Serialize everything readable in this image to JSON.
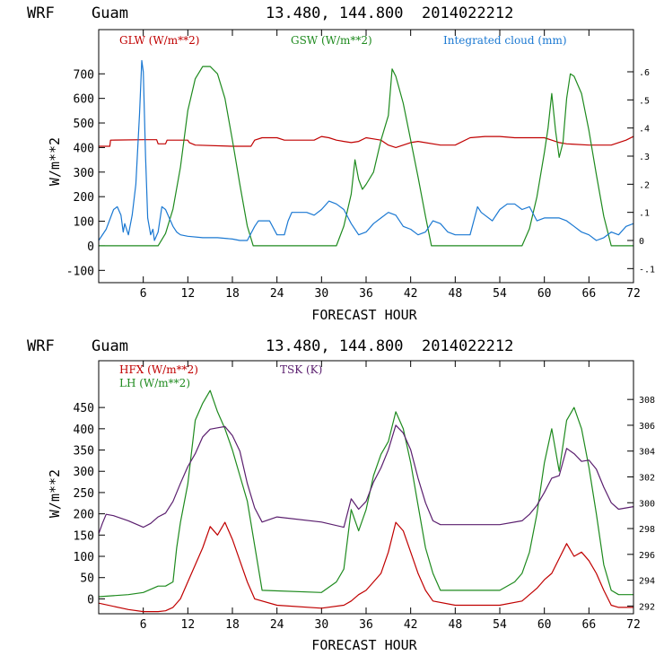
{
  "chart_data": [
    {
      "type": "line",
      "header": {
        "model": "WRF",
        "site": "Guam",
        "coords": "13.480, 144.800",
        "run": "2014022212"
      },
      "xlabel": "FORECAST HOUR",
      "ylabel": "W/m**2",
      "xlim": [
        0,
        72
      ],
      "ylim": [
        -150,
        880
      ],
      "xticks": [
        6,
        12,
        18,
        24,
        30,
        36,
        42,
        48,
        54,
        60,
        66,
        72
      ],
      "yticks": [
        -100,
        0,
        100,
        200,
        300,
        400,
        500,
        600,
        700
      ],
      "right_axis": {
        "ylim": [
          -0.15,
          0.75
        ],
        "ticks": [
          -0.1,
          0,
          0.1,
          0.2,
          0.3,
          0.4,
          0.5,
          0.6
        ],
        "tick_labels": [
          "-.1",
          "0",
          ".1",
          ".2",
          ".3",
          ".4",
          ".5",
          ".6"
        ]
      },
      "series": [
        {
          "name": "GLW (W/m**2)",
          "color": "#c00000",
          "axis": "left",
          "x": [
            0,
            1.5,
            1.6,
            6,
            7.8,
            8,
            9,
            9.2,
            12,
            12.2,
            13,
            18,
            20.5,
            21,
            22,
            24,
            25,
            29,
            30,
            31,
            32,
            33,
            34,
            35,
            36,
            37,
            38,
            39,
            40,
            41,
            42,
            43,
            46,
            48,
            50,
            52,
            54,
            56,
            58,
            60,
            61,
            62,
            63,
            66,
            69,
            71,
            72
          ],
          "values": [
            405,
            405,
            430,
            432,
            432,
            415,
            415,
            430,
            430,
            420,
            410,
            405,
            405,
            430,
            440,
            440,
            430,
            430,
            445,
            440,
            430,
            425,
            420,
            425,
            440,
            435,
            430,
            410,
            400,
            410,
            420,
            425,
            410,
            410,
            440,
            445,
            445,
            440,
            440,
            440,
            430,
            420,
            415,
            410,
            410,
            430,
            445
          ]
        },
        {
          "name": "GSW (W/m**2)",
          "color": "#1e8a1e",
          "axis": "left",
          "x": [
            0,
            8,
            9,
            10,
            11,
            12,
            13,
            14,
            15,
            16,
            17,
            18,
            19,
            20,
            20.8,
            21,
            32,
            33,
            34,
            34.5,
            35,
            35.5,
            36,
            37,
            38,
            39,
            39.5,
            40,
            41,
            42,
            43,
            44,
            44.8,
            45,
            57,
            58,
            59,
            60,
            60.5,
            61,
            61.5,
            62,
            62.5,
            63,
            63.5,
            64,
            65,
            66,
            67,
            68,
            69,
            72
          ],
          "values": [
            0,
            0,
            50,
            150,
            320,
            550,
            680,
            730,
            730,
            700,
            600,
            430,
            250,
            80,
            0,
            0,
            0,
            80,
            210,
            350,
            270,
            230,
            250,
            300,
            430,
            530,
            720,
            690,
            580,
            430,
            280,
            120,
            0,
            0,
            0,
            70,
            200,
            380,
            480,
            620,
            470,
            360,
            420,
            600,
            700,
            690,
            620,
            470,
            290,
            120,
            0,
            0
          ]
        },
        {
          "name": "Integrated cloud (mm)",
          "color": "#1a78d2",
          "axis": "right",
          "x": [
            0,
            1,
            2,
            2.5,
            3,
            3.3,
            3.5,
            4,
            4.5,
            5,
            5.5,
            5.8,
            6,
            6.3,
            6.6,
            7,
            7.3,
            7.5,
            8,
            8.5,
            9,
            9.5,
            10,
            10.5,
            11,
            12,
            14,
            16,
            18,
            19,
            20,
            21,
            21.5,
            22,
            23,
            24,
            25,
            25.5,
            26,
            27,
            28,
            29,
            30,
            31,
            32,
            33,
            34,
            35,
            36,
            37,
            38,
            39,
            40,
            41,
            42,
            43,
            44,
            45,
            46,
            47,
            48,
            49,
            50,
            51,
            51.5,
            52,
            53,
            54,
            55,
            56,
            57,
            58,
            59,
            60,
            61,
            62,
            63,
            64,
            65,
            66,
            67,
            68,
            69,
            70,
            71,
            72
          ],
          "values": [
            0,
            0.04,
            0.11,
            0.12,
            0.09,
            0.03,
            0.06,
            0.02,
            0.09,
            0.2,
            0.45,
            0.64,
            0.6,
            0.3,
            0.08,
            0.02,
            0.04,
            0.0,
            0.03,
            0.12,
            0.11,
            0.08,
            0.05,
            0.03,
            0.02,
            0.015,
            0.01,
            0.01,
            0.005,
            0.0,
            0.0,
            0.05,
            0.07,
            0.07,
            0.07,
            0.02,
            0.02,
            0.07,
            0.1,
            0.1,
            0.1,
            0.09,
            0.11,
            0.14,
            0.13,
            0.11,
            0.06,
            0.02,
            0.03,
            0.06,
            0.08,
            0.1,
            0.09,
            0.05,
            0.04,
            0.02,
            0.03,
            0.07,
            0.06,
            0.03,
            0.02,
            0.02,
            0.02,
            0.12,
            0.1,
            0.09,
            0.07,
            0.11,
            0.13,
            0.13,
            0.11,
            0.12,
            0.07,
            0.08,
            0.08,
            0.08,
            0.07,
            0.05,
            0.03,
            0.02,
            0.0,
            0.01,
            0.03,
            0.02,
            0.05,
            0.06
          ]
        }
      ]
    },
    {
      "type": "line",
      "header": {
        "model": "WRF",
        "site": "Guam",
        "coords": "13.480, 144.800",
        "run": "2014022212"
      },
      "xlabel": "FORECAST HOUR",
      "ylabel": "W/m**2",
      "xlim": [
        0,
        72
      ],
      "ylim": [
        -35,
        560
      ],
      "xticks": [
        6,
        12,
        18,
        24,
        30,
        36,
        42,
        48,
        54,
        60,
        66,
        72
      ],
      "yticks": [
        0,
        50,
        100,
        150,
        200,
        250,
        300,
        350,
        400,
        450
      ],
      "right_axis": {
        "ylim": [
          291.4,
          311.0
        ],
        "ticks": [
          292,
          294,
          296,
          298,
          300,
          302,
          304,
          306,
          308
        ],
        "tick_labels": [
          "292",
          "294",
          "296",
          "298",
          "300",
          "302",
          "304",
          "306",
          "308"
        ]
      },
      "series": [
        {
          "name": "HFX (W/m**2)",
          "color": "#c00000",
          "axis": "left",
          "x": [
            0,
            4,
            6,
            8,
            9,
            10,
            11,
            12,
            13,
            14,
            15,
            16,
            17,
            18,
            19,
            20,
            21,
            24,
            30,
            33,
            34,
            35,
            36,
            37,
            38,
            39,
            40,
            41,
            42,
            43,
            44,
            45,
            48,
            54,
            57,
            58,
            59,
            60,
            61,
            62,
            63,
            64,
            65,
            66,
            67,
            68,
            69,
            70,
            72
          ],
          "values": [
            -10,
            -25,
            -30,
            -30,
            -28,
            -20,
            0,
            40,
            80,
            120,
            170,
            150,
            180,
            140,
            90,
            40,
            0,
            -15,
            -22,
            -15,
            -5,
            10,
            20,
            40,
            60,
            110,
            180,
            160,
            110,
            60,
            20,
            -5,
            -15,
            -15,
            -5,
            10,
            25,
            45,
            60,
            95,
            130,
            100,
            110,
            90,
            60,
            20,
            -15,
            -20,
            -20
          ]
        },
        {
          "name": "LH  (W/m**2)",
          "color": "#1e8a1e",
          "axis": "left",
          "x": [
            0,
            4,
            6,
            8,
            9,
            10,
            10.5,
            11,
            12,
            13,
            14,
            15,
            16,
            17,
            18,
            19,
            20,
            22,
            30,
            32,
            33,
            34,
            35,
            36,
            37,
            38,
            39,
            40,
            41,
            42,
            43,
            44,
            45,
            46,
            54,
            56,
            57,
            58,
            59,
            60,
            61,
            62,
            63,
            64,
            65,
            66,
            67,
            68,
            69,
            70,
            72
          ],
          "values": [
            5,
            10,
            15,
            30,
            30,
            40,
            120,
            180,
            270,
            420,
            460,
            490,
            440,
            400,
            350,
            290,
            230,
            20,
            15,
            40,
            70,
            210,
            160,
            210,
            290,
            340,
            370,
            440,
            400,
            320,
            220,
            120,
            60,
            20,
            20,
            40,
            60,
            110,
            200,
            320,
            400,
            300,
            420,
            450,
            400,
            310,
            200,
            80,
            20,
            10,
            10
          ]
        },
        {
          "name": "TSK (K)",
          "color": "#5a1e6e",
          "axis": "right",
          "x": [
            0,
            0.5,
            1,
            2,
            4,
            6,
            7,
            8,
            9,
            10,
            11,
            12,
            13,
            14,
            15,
            16,
            17,
            18,
            19,
            20,
            21,
            22,
            24,
            30,
            33,
            34,
            35,
            36,
            37,
            38,
            39,
            40,
            41,
            42,
            43,
            44,
            45,
            46,
            48,
            54,
            57,
            58,
            59,
            60,
            61,
            62,
            63,
            64,
            65,
            66,
            67,
            68,
            69,
            70,
            72
          ],
          "values": [
            297.6,
            298.4,
            299.1,
            299.0,
            298.6,
            298.1,
            298.4,
            298.9,
            299.2,
            300.1,
            301.5,
            302.8,
            303.8,
            305.1,
            305.7,
            305.8,
            305.9,
            305.2,
            304.0,
            301.5,
            299.6,
            298.5,
            298.9,
            298.5,
            298.1,
            300.3,
            299.5,
            300.1,
            301.6,
            302.7,
            304.1,
            306.0,
            305.4,
            304.1,
            301.9,
            300.0,
            298.6,
            298.3,
            298.3,
            298.3,
            298.6,
            299.1,
            299.8,
            300.8,
            301.9,
            302.1,
            304.2,
            303.8,
            303.2,
            303.3,
            302.6,
            301.2,
            300.0,
            299.5,
            299.7
          ]
        }
      ]
    }
  ]
}
